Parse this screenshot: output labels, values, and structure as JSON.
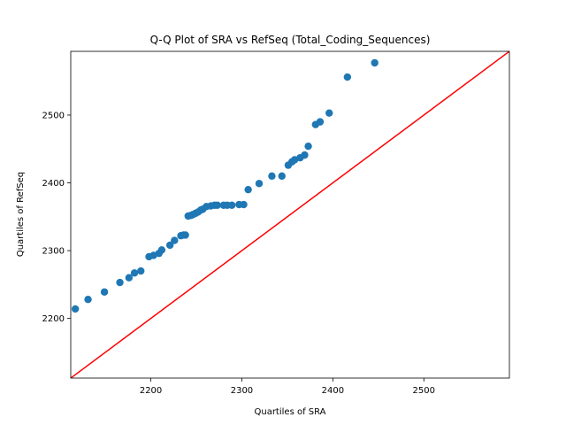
{
  "chart_data": {
    "type": "scatter",
    "title": "Q-Q Plot of SRA vs RefSeq (Total_Coding_Sequences)",
    "xlabel": "Quartiles of SRA",
    "ylabel": "Quartiles of RefSeq",
    "xlim": [
      2112,
      2594
    ],
    "ylim": [
      2112,
      2594
    ],
    "xticks": [
      2200,
      2300,
      2400,
      2500
    ],
    "yticks": [
      2200,
      2300,
      2400,
      2500
    ],
    "grid": false,
    "legend": "none",
    "marker_color": "#1f77b4",
    "reference_line": {
      "type": "y=x",
      "color": "#ff0000"
    },
    "series": [
      {
        "points": [
          [
            2117,
            2214
          ],
          [
            2131,
            2228
          ],
          [
            2149,
            2239
          ],
          [
            2166,
            2253
          ],
          [
            2176,
            2260
          ],
          [
            2182,
            2267
          ],
          [
            2189,
            2270
          ],
          [
            2198,
            2291
          ],
          [
            2203,
            2293
          ],
          [
            2209,
            2296
          ],
          [
            2212,
            2301
          ],
          [
            2221,
            2308
          ],
          [
            2226,
            2315
          ],
          [
            2233,
            2322
          ],
          [
            2236,
            2323
          ],
          [
            2238,
            2323
          ],
          [
            2241,
            2351
          ],
          [
            2244,
            2352
          ],
          [
            2246,
            2353
          ],
          [
            2249,
            2355
          ],
          [
            2252,
            2357
          ],
          [
            2255,
            2360
          ],
          [
            2257,
            2361
          ],
          [
            2261,
            2365
          ],
          [
            2266,
            2366
          ],
          [
            2270,
            2367
          ],
          [
            2273,
            2367
          ],
          [
            2280,
            2367
          ],
          [
            2284,
            2367
          ],
          [
            2289,
            2367
          ],
          [
            2297,
            2368
          ],
          [
            2302,
            2368
          ],
          [
            2307,
            2390
          ],
          [
            2319,
            2399
          ],
          [
            2333,
            2410
          ],
          [
            2344,
            2410
          ],
          [
            2351,
            2426
          ],
          [
            2355,
            2431
          ],
          [
            2358,
            2434
          ],
          [
            2364,
            2437
          ],
          [
            2369,
            2441
          ],
          [
            2373,
            2454
          ],
          [
            2381,
            2486
          ],
          [
            2386,
            2490
          ],
          [
            2396,
            2503
          ],
          [
            2416,
            2556
          ],
          [
            2446,
            2577
          ]
        ]
      }
    ]
  }
}
